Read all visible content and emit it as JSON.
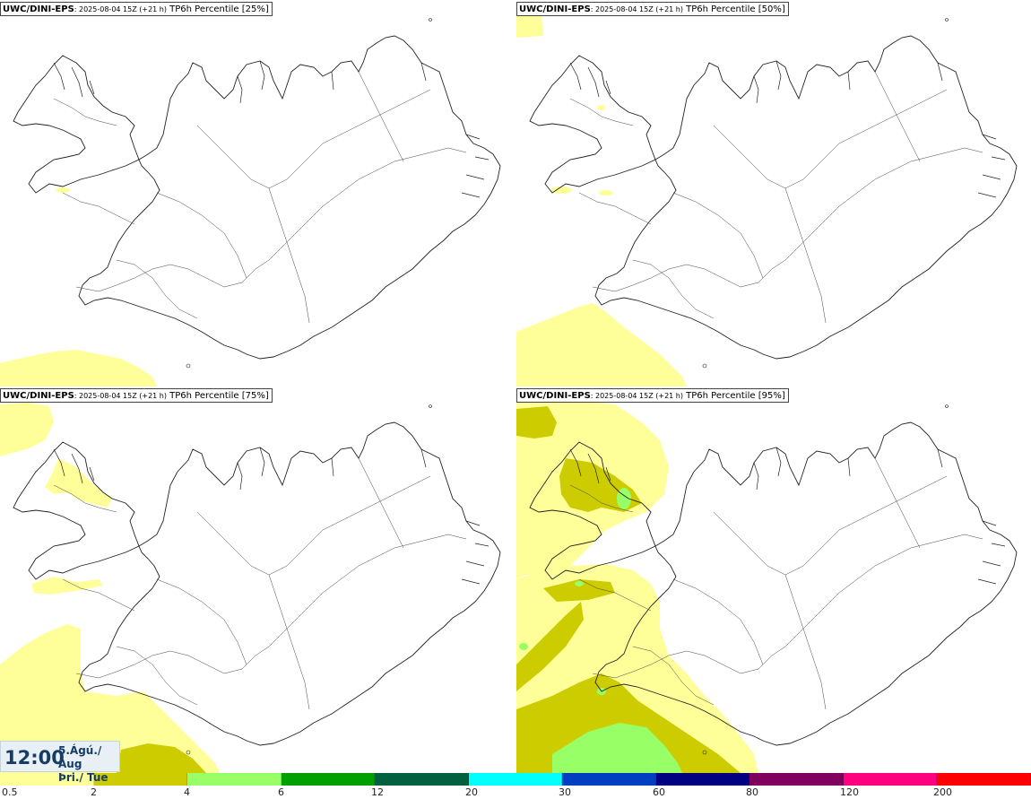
{
  "panels": [
    {
      "model": "UWC/DINI-EPS",
      "run": ": 2025-08-04 15Z (+21 h)",
      "product": " TP6h Percentile [25%]",
      "level": "p25"
    },
    {
      "model": "UWC/DINI-EPS",
      "run": ": 2025-08-04 15Z (+21 h)",
      "product": " TP6h Percentile [50%]",
      "level": "p50"
    },
    {
      "model": "UWC/DINI-EPS",
      "run": ": 2025-08-04 15Z (+21 h)",
      "product": " TP6h Percentile [75%]",
      "level": "p75"
    },
    {
      "model": "UWC/DINI-EPS",
      "run": ": 2025-08-04 15Z (+21 h)",
      "product": " TP6h Percentile [95%]",
      "level": "p95"
    }
  ],
  "valid_time": {
    "clock": "12:00",
    "date_line1": "5.Ágú./ Aug",
    "date_line2": "Þri./ Tue"
  },
  "legend": {
    "colors": [
      "#ffff99",
      "#cccc00",
      "#99ff66",
      "#00a000",
      "#006040",
      "#00ffff",
      "#0040c0",
      "#000080",
      "#800060",
      "#ff0080",
      "#ff0000"
    ],
    "labels": [
      "0.5",
      "2",
      "4",
      "6",
      "12",
      "20",
      "30",
      "60",
      "80",
      "120",
      "200"
    ]
  },
  "precip_colors": {
    "light": "#ffff99",
    "moderate": "#cccc00",
    "heavy": "#99ff66"
  }
}
